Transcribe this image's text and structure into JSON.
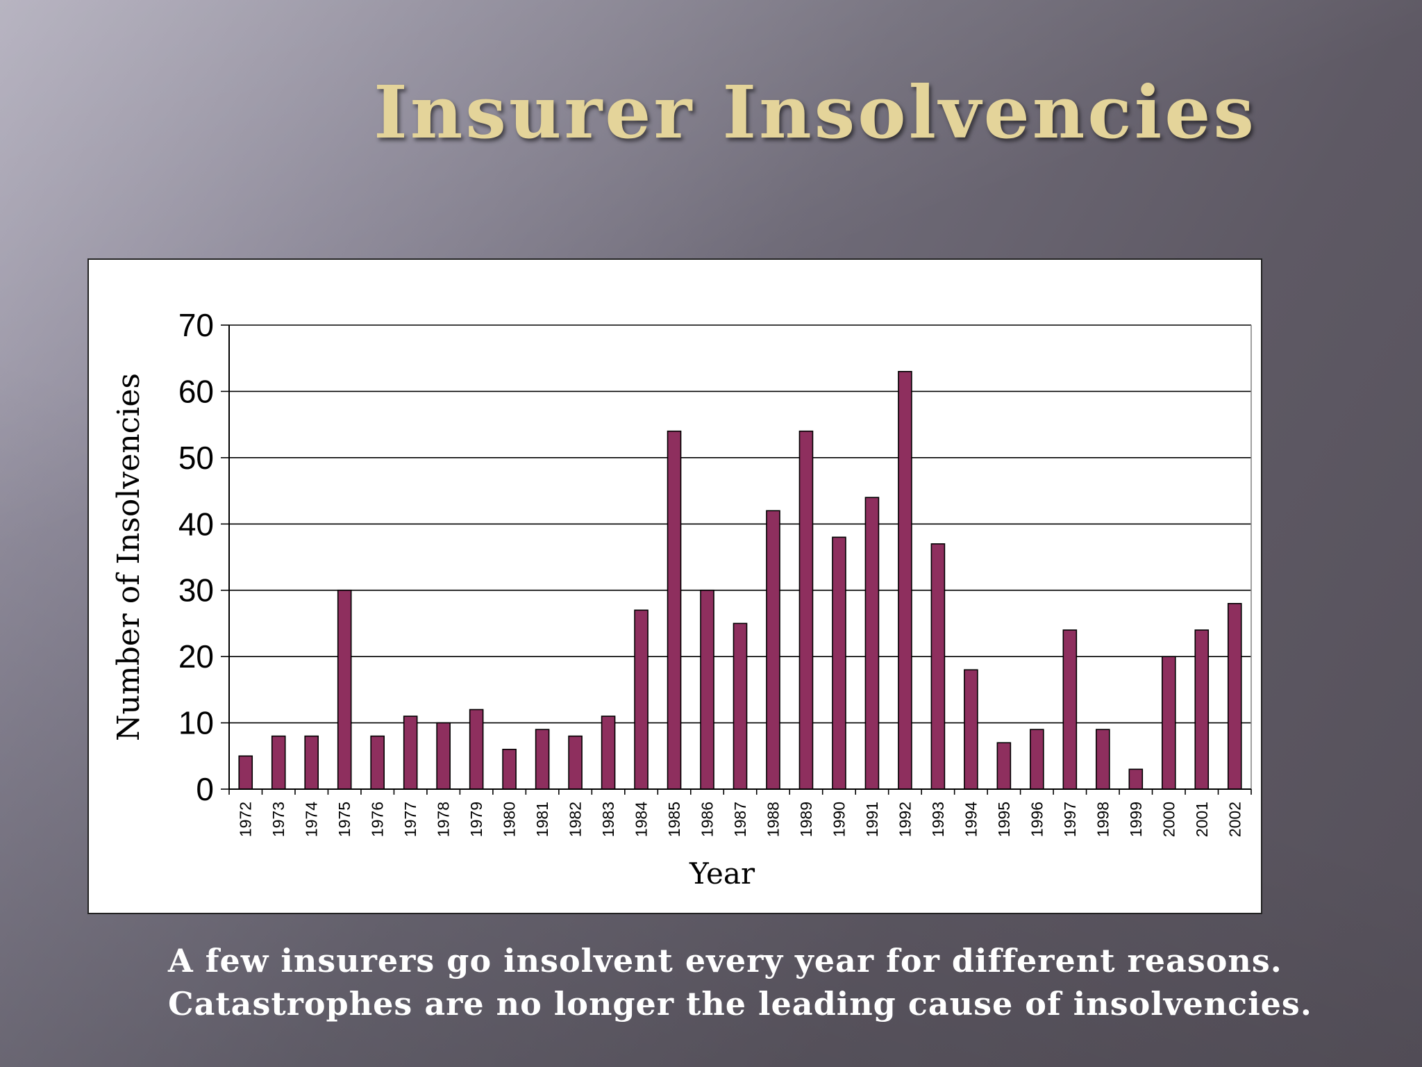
{
  "slide": {
    "title": "Insurer Insolvencies",
    "caption_line1": "A few insurers go insolvent every year for different reasons.",
    "caption_line2": "Catastrophes are no longer the leading cause of insolvencies."
  },
  "colors": {
    "bar_fill": "#8e2f5e",
    "title": "#e4d49a"
  },
  "chart_data": {
    "type": "bar",
    "title": "",
    "xlabel": "Year",
    "ylabel": "Number of Insolvencies",
    "ylim": [
      0,
      70
    ],
    "yticks": [
      0,
      10,
      20,
      30,
      40,
      50,
      60,
      70
    ],
    "grid": true,
    "legend": "none",
    "categories": [
      "1972",
      "1973",
      "1974",
      "1975",
      "1976",
      "1977",
      "1978",
      "1979",
      "1980",
      "1981",
      "1982",
      "1983",
      "1984",
      "1985",
      "1986",
      "1987",
      "1988",
      "1989",
      "1990",
      "1991",
      "1992",
      "1993",
      "1994",
      "1995",
      "1996",
      "1997",
      "1998",
      "1999",
      "2000",
      "2001",
      "2002"
    ],
    "values": [
      5,
      8,
      8,
      30,
      8,
      11,
      10,
      12,
      6,
      9,
      8,
      11,
      27,
      54,
      30,
      25,
      42,
      54,
      38,
      44,
      63,
      37,
      18,
      7,
      9,
      24,
      9,
      3,
      20,
      24,
      28
    ]
  }
}
